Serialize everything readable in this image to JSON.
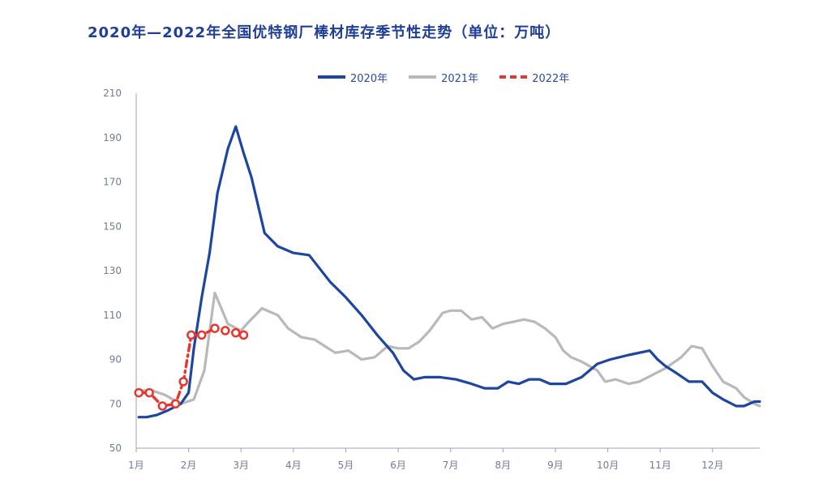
{
  "title": "2020年—2022年全国优特钢厂棒材库存季节性走势（单位：万吨）",
  "chart_data": {
    "type": "line",
    "title": "2020年—2022年全国优特钢厂棒材库存季节性走势（单位：万吨）",
    "xlabel": "",
    "ylabel": "",
    "ylim": [
      50,
      210
    ],
    "yticks": [
      50,
      70,
      90,
      110,
      130,
      150,
      170,
      190,
      210
    ],
    "x_tick_labels": [
      "1月",
      "2月",
      "3月",
      "4月",
      "5月",
      "6月",
      "7月",
      "8月",
      "9月",
      "10月",
      "11月",
      "12月"
    ],
    "x_range": [
      1,
      12.9
    ],
    "legend_position": "top-center",
    "grid": false,
    "series": [
      {
        "name": "2020年",
        "color": "#1d46a0",
        "style": "solid",
        "x": [
          1.05,
          1.2,
          1.4,
          1.6,
          1.85,
          2.0,
          2.1,
          2.25,
          2.4,
          2.55,
          2.75,
          2.9,
          3.05,
          3.2,
          3.45,
          3.7,
          4.0,
          4.3,
          4.7,
          5.0,
          5.3,
          5.6,
          5.9,
          6.1,
          6.3,
          6.5,
          6.8,
          7.1,
          7.4,
          7.65,
          7.9,
          8.1,
          8.3,
          8.5,
          8.7,
          8.9,
          9.2,
          9.5,
          9.8,
          10.05,
          10.4,
          10.8,
          10.95,
          11.1,
          11.3,
          11.55,
          11.8,
          12.0,
          12.2,
          12.45,
          12.6,
          12.8,
          12.9
        ],
        "values": [
          64,
          64,
          65,
          67,
          70,
          75,
          95,
          118,
          138,
          165,
          185,
          195,
          183,
          172,
          147,
          141,
          138,
          137,
          125,
          118,
          110,
          101,
          93,
          85,
          81,
          82,
          82,
          81,
          79,
          77,
          77,
          80,
          79,
          81,
          81,
          79,
          79,
          82,
          88,
          90,
          92,
          94,
          90,
          87,
          84,
          80,
          80,
          75,
          72,
          69,
          69,
          71,
          71
        ]
      },
      {
        "name": "2021年",
        "color": "#b9b9b9",
        "style": "solid",
        "x": [
          1.05,
          1.3,
          1.55,
          1.85,
          2.1,
          2.3,
          2.5,
          2.75,
          3.0,
          3.15,
          3.4,
          3.7,
          3.9,
          4.15,
          4.4,
          4.6,
          4.8,
          5.05,
          5.3,
          5.55,
          5.8,
          6.0,
          6.2,
          6.4,
          6.6,
          6.85,
          7.0,
          7.2,
          7.4,
          7.6,
          7.8,
          8.0,
          8.2,
          8.4,
          8.6,
          8.8,
          9.0,
          9.15,
          9.3,
          9.5,
          9.8,
          9.95,
          10.15,
          10.4,
          10.6,
          10.85,
          11.1,
          11.4,
          11.6,
          11.8,
          12.0,
          12.2,
          12.45,
          12.6,
          12.8,
          12.9
        ],
        "values": [
          76,
          76,
          74,
          70,
          72,
          85,
          120,
          106,
          103,
          107,
          113,
          110,
          104,
          100,
          99,
          96,
          93,
          94,
          90,
          91,
          96,
          95,
          95,
          98,
          103,
          111,
          112,
          112,
          108,
          109,
          104,
          106,
          107,
          108,
          107,
          104,
          100,
          94,
          91,
          89,
          85,
          80,
          81,
          79,
          80,
          83,
          86,
          91,
          96,
          95,
          87,
          80,
          77,
          73,
          70,
          69
        ]
      },
      {
        "name": "2022年",
        "color": "#e8352e",
        "style": "dash-dot",
        "x": [
          1.05,
          1.25,
          1.5,
          1.75,
          1.9,
          2.05,
          2.25,
          2.5,
          2.7,
          2.9,
          3.05
        ],
        "values": [
          75,
          75,
          69,
          70,
          80,
          101,
          101,
          104,
          103,
          102,
          101
        ]
      }
    ]
  }
}
